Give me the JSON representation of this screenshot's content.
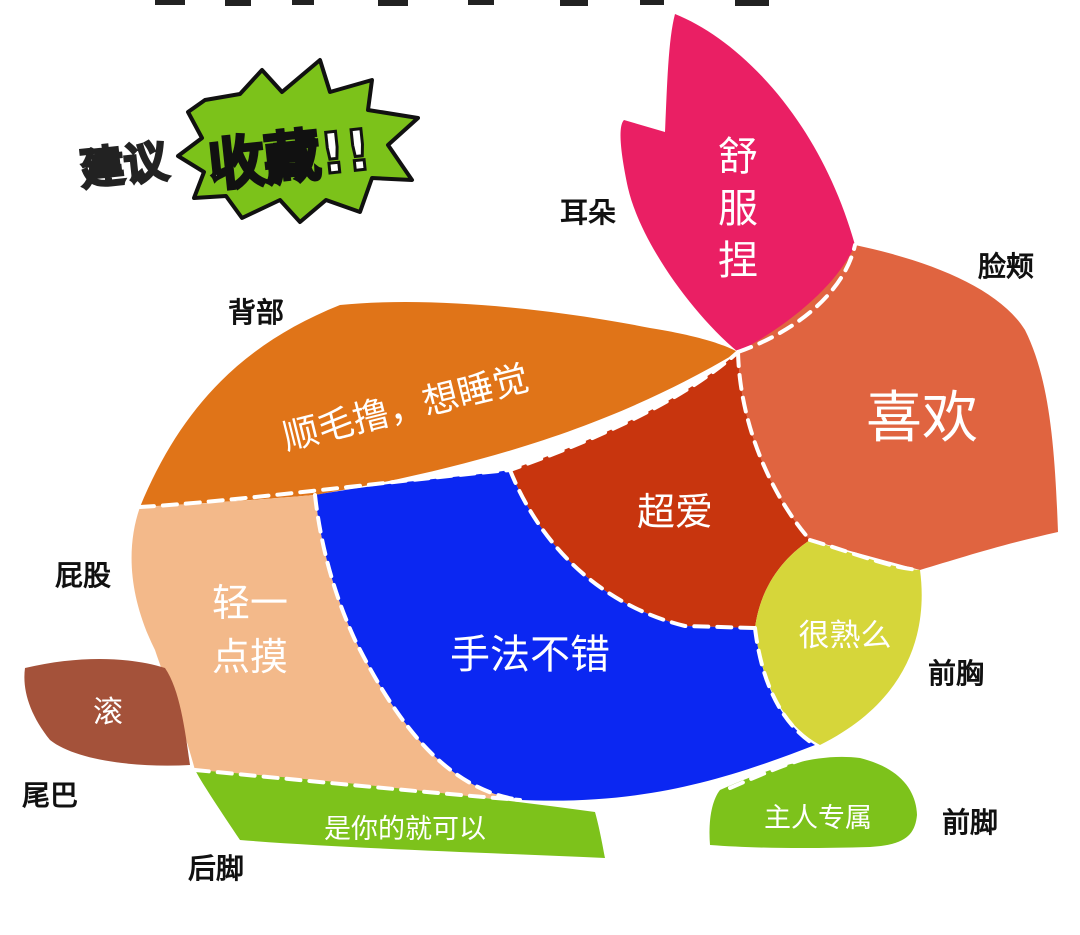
{
  "badge": {
    "prefix": "建议",
    "main": "收藏!!",
    "color": "#7cc21a"
  },
  "zones": [
    {
      "id": "ear",
      "part": "耳朵",
      "text_lines": [
        "舒",
        "服",
        "捏"
      ],
      "color": "#ea1f64"
    },
    {
      "id": "cheek",
      "part": "脸颊",
      "text_lines": [
        "喜欢"
      ],
      "color": "#e06440"
    },
    {
      "id": "back",
      "part": "背部",
      "text_lines": [
        "顺毛撸，想睡觉"
      ],
      "color": "#e07418"
    },
    {
      "id": "neck",
      "part": "",
      "text_lines": [
        "超爱"
      ],
      "color": "#c8350e"
    },
    {
      "id": "belly",
      "part": "",
      "text_lines": [
        "手法不错"
      ],
      "color": "#0b27f2"
    },
    {
      "id": "butt",
      "part": "屁股",
      "text_lines": [
        "轻一",
        "点摸"
      ],
      "color": "#f3b98a"
    },
    {
      "id": "chest",
      "part": "前胸",
      "text_lines": [
        "很熟么"
      ],
      "color": "#d6d63a"
    },
    {
      "id": "tail",
      "part": "尾巴",
      "text_lines": [
        "滚"
      ],
      "color": "#a4523a"
    },
    {
      "id": "hind-foot",
      "part": "后脚",
      "text_lines": [
        "是你的就可以"
      ],
      "color": "#7dc21b"
    },
    {
      "id": "front-foot",
      "part": "前脚",
      "text_lines": [
        "主人专属"
      ],
      "color": "#7dc21b"
    }
  ]
}
